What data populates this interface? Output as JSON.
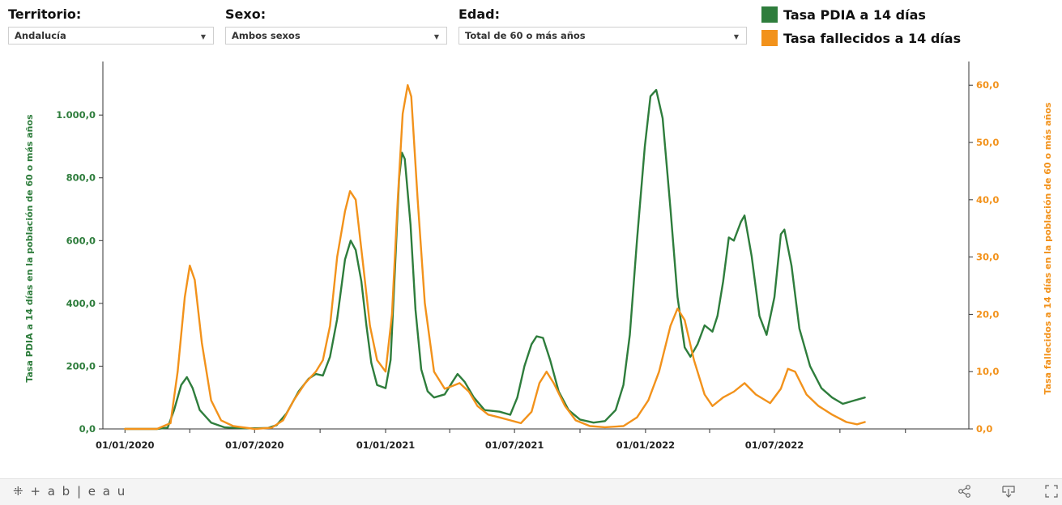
{
  "filters": [
    {
      "label": "Territorio:",
      "value": "Andalucía"
    },
    {
      "label": "Sexo:",
      "value": "Ambos sexos"
    },
    {
      "label": "Edad:",
      "value": "Total de 60 o más años"
    }
  ],
  "legend": [
    {
      "label": "Tasa PDIA a 14 días",
      "color": "#2e7d3c"
    },
    {
      "label": "Tasa fallecidos a 14 días",
      "color": "#f2921b"
    }
  ],
  "footer": {
    "brand": "+ a b | e a u",
    "icons": [
      "share-icon",
      "download-icon",
      "fullscreen-icon"
    ]
  },
  "chart_data": {
    "type": "line",
    "y_left_label": "Tasa PDIA a 14 días en la población de 60 o más años",
    "y_right_label": "Tasa fallecidos a 14 días en la población de 60 o más años",
    "y_left_ticks": [
      "0,0",
      "200,0",
      "400,0",
      "600,0",
      "800,0",
      "1.000,0"
    ],
    "y_right_ticks": [
      "0,0",
      "10,0",
      "20,0",
      "30,0",
      "40,0",
      "50,0",
      "60,0"
    ],
    "x_ticks": [
      "01/01/2020",
      "01/07/2020",
      "01/01/2021",
      "01/07/2021",
      "01/01/2022",
      "01/07/2022"
    ],
    "y_left_range": [
      0,
      1150
    ],
    "y_right_range": [
      0,
      63
    ],
    "x_range": [
      "2019-12-01",
      "2023-03-31"
    ],
    "series": [
      {
        "name": "Tasa PDIA a 14 días",
        "axis": "left",
        "color": "#2e7d3c",
        "points": [
          [
            "2020-01-01",
            0
          ],
          [
            "2020-02-15",
            0
          ],
          [
            "2020-03-01",
            4
          ],
          [
            "2020-03-10",
            60
          ],
          [
            "2020-03-20",
            140
          ],
          [
            "2020-03-28",
            165
          ],
          [
            "2020-04-05",
            130
          ],
          [
            "2020-04-15",
            60
          ],
          [
            "2020-05-01",
            20
          ],
          [
            "2020-05-20",
            5
          ],
          [
            "2020-06-15",
            2
          ],
          [
            "2020-07-01",
            2
          ],
          [
            "2020-07-20",
            3
          ],
          [
            "2020-08-01",
            12
          ],
          [
            "2020-08-15",
            50
          ],
          [
            "2020-09-01",
            120
          ],
          [
            "2020-09-15",
            160
          ],
          [
            "2020-09-25",
            175
          ],
          [
            "2020-10-05",
            170
          ],
          [
            "2020-10-15",
            230
          ],
          [
            "2020-10-25",
            350
          ],
          [
            "2020-11-05",
            540
          ],
          [
            "2020-11-13",
            600
          ],
          [
            "2020-11-20",
            570
          ],
          [
            "2020-11-28",
            470
          ],
          [
            "2020-12-05",
            330
          ],
          [
            "2020-12-12",
            210
          ],
          [
            "2020-12-20",
            140
          ],
          [
            "2021-01-01",
            130
          ],
          [
            "2021-01-08",
            220
          ],
          [
            "2021-01-14",
            500
          ],
          [
            "2021-01-20",
            800
          ],
          [
            "2021-01-24",
            880
          ],
          [
            "2021-01-28",
            860
          ],
          [
            "2021-02-05",
            650
          ],
          [
            "2021-02-12",
            380
          ],
          [
            "2021-02-20",
            190
          ],
          [
            "2021-03-01",
            120
          ],
          [
            "2021-03-10",
            100
          ],
          [
            "2021-03-25",
            110
          ],
          [
            "2021-04-05",
            150
          ],
          [
            "2021-04-12",
            175
          ],
          [
            "2021-04-22",
            150
          ],
          [
            "2021-05-05",
            100
          ],
          [
            "2021-05-20",
            60
          ],
          [
            "2021-06-10",
            55
          ],
          [
            "2021-06-25",
            45
          ],
          [
            "2021-07-05",
            100
          ],
          [
            "2021-07-15",
            200
          ],
          [
            "2021-07-25",
            270
          ],
          [
            "2021-08-01",
            295
          ],
          [
            "2021-08-10",
            290
          ],
          [
            "2021-08-20",
            220
          ],
          [
            "2021-09-01",
            120
          ],
          [
            "2021-09-15",
            60
          ],
          [
            "2021-10-01",
            30
          ],
          [
            "2021-10-20",
            20
          ],
          [
            "2021-11-05",
            25
          ],
          [
            "2021-11-20",
            60
          ],
          [
            "2021-12-01",
            140
          ],
          [
            "2021-12-10",
            300
          ],
          [
            "2021-12-20",
            600
          ],
          [
            "2021-12-31",
            900
          ],
          [
            "2022-01-08",
            1060
          ],
          [
            "2022-01-16",
            1080
          ],
          [
            "2022-01-25",
            990
          ],
          [
            "2022-02-05",
            700
          ],
          [
            "2022-02-15",
            420
          ],
          [
            "2022-02-25",
            260
          ],
          [
            "2022-03-05",
            230
          ],
          [
            "2022-03-15",
            270
          ],
          [
            "2022-03-25",
            330
          ],
          [
            "2022-04-05",
            310
          ],
          [
            "2022-04-12",
            360
          ],
          [
            "2022-04-20",
            470
          ],
          [
            "2022-04-28",
            610
          ],
          [
            "2022-05-05",
            600
          ],
          [
            "2022-05-15",
            660
          ],
          [
            "2022-05-20",
            680
          ],
          [
            "2022-05-30",
            550
          ],
          [
            "2022-06-10",
            360
          ],
          [
            "2022-06-20",
            300
          ],
          [
            "2022-07-01",
            420
          ],
          [
            "2022-07-10",
            620
          ],
          [
            "2022-07-15",
            635
          ],
          [
            "2022-07-25",
            520
          ],
          [
            "2022-08-05",
            320
          ],
          [
            "2022-08-20",
            200
          ],
          [
            "2022-09-05",
            130
          ],
          [
            "2022-09-20",
            100
          ],
          [
            "2022-10-05",
            80
          ],
          [
            "2022-10-20",
            90
          ],
          [
            "2022-11-05",
            100
          ]
        ]
      },
      {
        "name": "Tasa fallecidos a 14 días",
        "axis": "right",
        "color": "#f2921b",
        "points": [
          [
            "2020-01-01",
            0
          ],
          [
            "2020-02-15",
            0
          ],
          [
            "2020-03-05",
            1
          ],
          [
            "2020-03-15",
            10
          ],
          [
            "2020-03-25",
            23
          ],
          [
            "2020-04-01",
            28.5
          ],
          [
            "2020-04-08",
            26
          ],
          [
            "2020-04-18",
            15
          ],
          [
            "2020-05-01",
            5
          ],
          [
            "2020-05-15",
            1.5
          ],
          [
            "2020-06-01",
            0.5
          ],
          [
            "2020-07-01",
            0
          ],
          [
            "2020-07-25",
            0.2
          ],
          [
            "2020-08-10",
            1.5
          ],
          [
            "2020-08-25",
            5
          ],
          [
            "2020-09-10",
            8
          ],
          [
            "2020-09-25",
            10
          ],
          [
            "2020-10-05",
            12
          ],
          [
            "2020-10-15",
            18
          ],
          [
            "2020-10-25",
            30
          ],
          [
            "2020-11-05",
            38
          ],
          [
            "2020-11-12",
            41.5
          ],
          [
            "2020-11-20",
            40
          ],
          [
            "2020-12-01",
            28
          ],
          [
            "2020-12-10",
            18
          ],
          [
            "2020-12-20",
            12
          ],
          [
            "2021-01-01",
            10
          ],
          [
            "2021-01-10",
            20
          ],
          [
            "2021-01-18",
            40
          ],
          [
            "2021-01-25",
            55
          ],
          [
            "2021-02-01",
            60
          ],
          [
            "2021-02-06",
            58
          ],
          [
            "2021-02-15",
            40
          ],
          [
            "2021-02-25",
            22
          ],
          [
            "2021-03-10",
            10
          ],
          [
            "2021-03-25",
            7
          ],
          [
            "2021-04-05",
            7.5
          ],
          [
            "2021-04-15",
            8
          ],
          [
            "2021-04-28",
            6.5
          ],
          [
            "2021-05-10",
            4
          ],
          [
            "2021-05-25",
            2.5
          ],
          [
            "2021-06-10",
            2
          ],
          [
            "2021-06-25",
            1.5
          ],
          [
            "2021-07-10",
            1
          ],
          [
            "2021-07-25",
            3
          ],
          [
            "2021-08-05",
            8
          ],
          [
            "2021-08-15",
            10
          ],
          [
            "2021-08-25",
            8
          ],
          [
            "2021-09-10",
            4
          ],
          [
            "2021-09-25",
            1.5
          ],
          [
            "2021-10-15",
            0.5
          ],
          [
            "2021-11-05",
            0.3
          ],
          [
            "2021-12-01",
            0.5
          ],
          [
            "2021-12-20",
            2
          ],
          [
            "2022-01-05",
            5
          ],
          [
            "2022-01-20",
            10
          ],
          [
            "2022-02-05",
            18
          ],
          [
            "2022-02-15",
            21
          ],
          [
            "2022-02-25",
            19
          ],
          [
            "2022-03-10",
            12
          ],
          [
            "2022-03-25",
            6
          ],
          [
            "2022-04-05",
            4
          ],
          [
            "2022-04-20",
            5.5
          ],
          [
            "2022-05-05",
            6.5
          ],
          [
            "2022-05-20",
            8
          ],
          [
            "2022-06-05",
            6
          ],
          [
            "2022-06-25",
            4.5
          ],
          [
            "2022-07-10",
            7
          ],
          [
            "2022-07-20",
            10.5
          ],
          [
            "2022-07-30",
            10
          ],
          [
            "2022-08-15",
            6
          ],
          [
            "2022-09-01",
            4
          ],
          [
            "2022-09-20",
            2.5
          ],
          [
            "2022-10-10",
            1.2
          ],
          [
            "2022-10-25",
            0.8
          ],
          [
            "2022-11-05",
            1.2
          ]
        ]
      }
    ]
  }
}
